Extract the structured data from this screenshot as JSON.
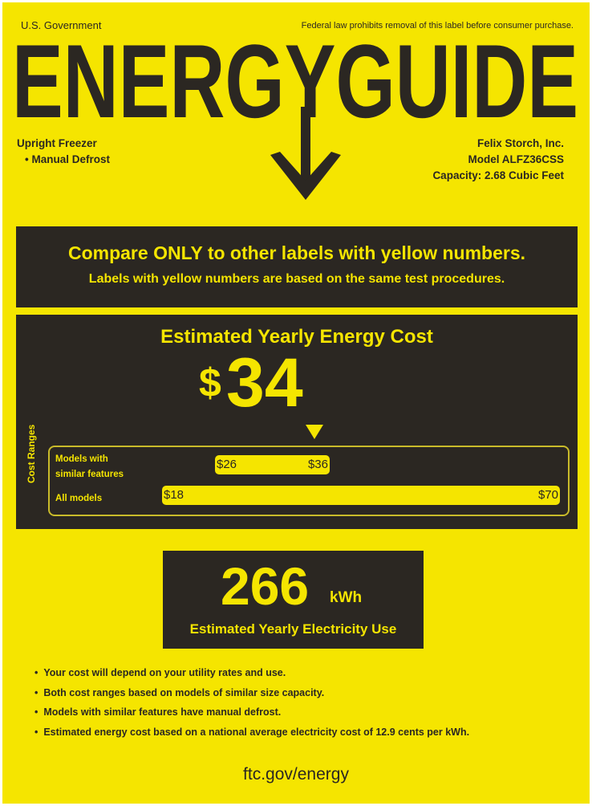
{
  "header": {
    "issuer": "U.S. Government",
    "notice": "Federal law prohibits removal of this label before consumer purchase.",
    "title": "ENERGYGUIDE",
    "product_type": "Upright Freezer",
    "feature": "• Manual Defrost",
    "manufacturer": "Felix Storch, Inc.",
    "model": "Model ALFZ36CSS",
    "capacity": "Capacity: 2.68 Cubic Feet"
  },
  "compare": {
    "headline": "Compare ONLY to other labels with yellow numbers.",
    "subline": "Labels with yellow numbers are based on the same test procedures."
  },
  "cost": {
    "heading": "Estimated Yearly Energy Cost",
    "currency": "$",
    "value": "34",
    "ranges_label": "Cost Ranges",
    "similar": {
      "label_line1": "Models with",
      "label_line2": "similar features",
      "min": "$26",
      "max": "$36"
    },
    "all": {
      "label": "All models",
      "min": "$18",
      "max": "$70"
    }
  },
  "electricity": {
    "value": "266",
    "unit": "kWh",
    "caption": "Estimated Yearly Electricity Use"
  },
  "notes": [
    "Your cost will depend on your utility rates and use.",
    "Both cost ranges based on models of similar size capacity.",
    "Models with similar features have manual defrost.",
    "Estimated energy cost based on a national average electricity cost of 12.9 cents per kWh."
  ],
  "footer": {
    "url": "ftc.gov/energy"
  },
  "colors": {
    "label_yellow": "#f5e500",
    "panel_dark": "#2b2722"
  }
}
